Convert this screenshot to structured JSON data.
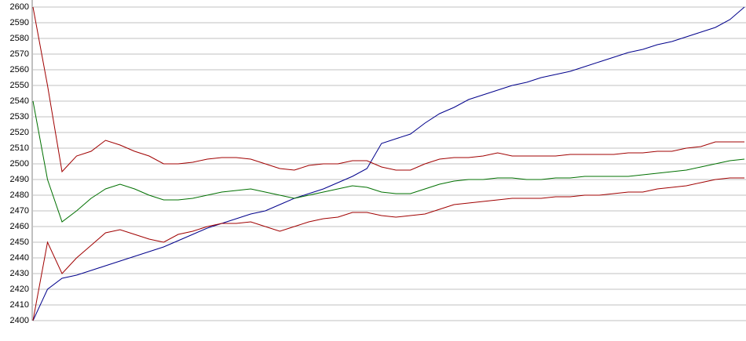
{
  "chart_data": {
    "type": "line",
    "ylim": [
      2400,
      2600
    ],
    "yticks": [
      2400,
      2410,
      2420,
      2430,
      2440,
      2450,
      2460,
      2470,
      2480,
      2490,
      2500,
      2510,
      2520,
      2530,
      2540,
      2550,
      2560,
      2570,
      2580,
      2590,
      2600
    ],
    "grid": true,
    "series": [
      {
        "color": "#00008b",
        "values": [
          2400,
          2420,
          2427,
          2429,
          2432,
          2435,
          2438,
          2441,
          2444,
          2447,
          2451,
          2455,
          2459,
          2462,
          2465,
          2468,
          2470,
          2474,
          2478,
          2481,
          2484,
          2488,
          2492,
          2497,
          2513,
          2516,
          2519,
          2526,
          2532,
          2536,
          2541,
          2544,
          2547,
          2550,
          2552,
          2555,
          2557,
          2559,
          2562,
          2565,
          2568,
          2571,
          2573,
          2576,
          2578,
          2581,
          2584,
          2587,
          2592,
          2600
        ]
      },
      {
        "color": "#a00000",
        "values": [
          2600,
          2550,
          2495,
          2505,
          2508,
          2515,
          2512,
          2508,
          2505,
          2500,
          2500,
          2501,
          2503,
          2504,
          2504,
          2503,
          2500,
          2497,
          2496,
          2499,
          2500,
          2500,
          2502,
          2502,
          2498,
          2496,
          2496,
          2500,
          2503,
          2504,
          2504,
          2505,
          2507,
          2505,
          2505,
          2505,
          2505,
          2506,
          2506,
          2506,
          2506,
          2507,
          2507,
          2508,
          2508,
          2510,
          2511,
          2514,
          2514,
          2514
        ]
      },
      {
        "color": "#007000",
        "values": [
          2540,
          2490,
          2463,
          2470,
          2478,
          2484,
          2487,
          2484,
          2480,
          2477,
          2477,
          2478,
          2480,
          2482,
          2483,
          2484,
          2482,
          2480,
          2478,
          2480,
          2482,
          2484,
          2486,
          2485,
          2482,
          2481,
          2481,
          2484,
          2487,
          2489,
          2490,
          2490,
          2491,
          2491,
          2490,
          2490,
          2491,
          2491,
          2492,
          2492,
          2492,
          2492,
          2493,
          2494,
          2495,
          2496,
          2498,
          2500,
          2502,
          2503
        ]
      },
      {
        "color": "#a00000",
        "values": [
          2400,
          2450,
          2430,
          2440,
          2448,
          2456,
          2458,
          2455,
          2452,
          2450,
          2455,
          2457,
          2460,
          2462,
          2462,
          2463,
          2460,
          2457,
          2460,
          2463,
          2465,
          2466,
          2469,
          2469,
          2467,
          2466,
          2467,
          2468,
          2471,
          2474,
          2475,
          2476,
          2477,
          2478,
          2478,
          2478,
          2479,
          2479,
          2480,
          2480,
          2481,
          2482,
          2482,
          2484,
          2485,
          2486,
          2488,
          2490,
          2491,
          2491
        ]
      }
    ]
  }
}
